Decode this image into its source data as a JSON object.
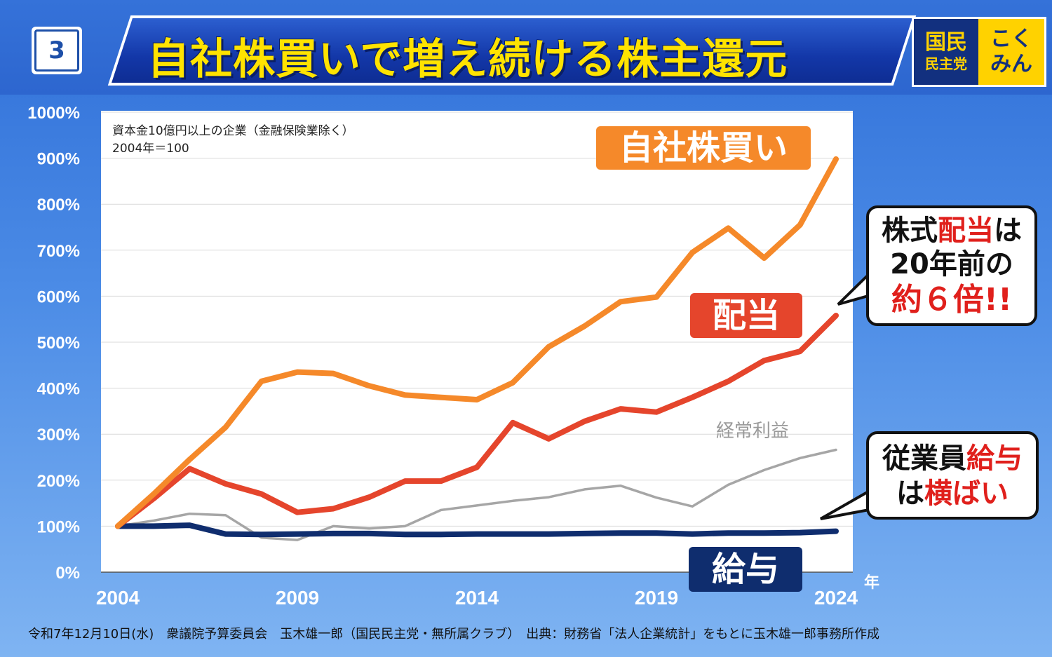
{
  "header": {
    "number": "3",
    "title": "自社株買いで増え続ける株主還元",
    "logo_line1": "国民",
    "logo_line2": "民主党",
    "logo_right1": "こく",
    "logo_right2": "みん"
  },
  "colors": {
    "buyback": "#f5892a",
    "dividend": "#e5452c",
    "ordinary_profit": "#a6a6a6",
    "salary": "#0f2d6e",
    "chip_orange": "#f5892a",
    "chip_red": "#e5452c",
    "chip_navy": "#0f2d6e"
  },
  "chart_data": {
    "type": "line",
    "note_line1": "資本金10億円以上の企業（金融保険業除く）",
    "note_line2": "2004年＝100",
    "x_unit": "年",
    "ylim": [
      0,
      1000
    ],
    "xlim": [
      2004,
      2024
    ],
    "y_ticks": [
      "0%",
      "100%",
      "200%",
      "300%",
      "400%",
      "500%",
      "600%",
      "700%",
      "800%",
      "900%",
      "1000%"
    ],
    "x_ticks": [
      "2004",
      "2009",
      "2014",
      "2019",
      "2024"
    ],
    "grid": true,
    "x": [
      2004,
      2005,
      2006,
      2007,
      2008,
      2009,
      2010,
      2011,
      2012,
      2013,
      2014,
      2015,
      2016,
      2017,
      2018,
      2019,
      2020,
      2021,
      2022,
      2023,
      2024
    ],
    "series": [
      {
        "key": "buyback",
        "name": "自社株買い",
        "values": [
          100,
          170,
          245,
          315,
          415,
          435,
          432,
          405,
          385,
          380,
          375,
          412,
          490,
          535,
          588,
          598,
          695,
          748,
          683,
          755,
          898
        ]
      },
      {
        "key": "dividend",
        "name": "配当",
        "values": [
          100,
          160,
          225,
          192,
          170,
          130,
          138,
          163,
          198,
          198,
          228,
          325,
          290,
          328,
          355,
          348,
          380,
          415,
          460,
          480,
          558
        ]
      },
      {
        "key": "ordinary_profit",
        "name": "経常利益",
        "values": [
          100,
          112,
          127,
          124,
          75,
          70,
          100,
          95,
          100,
          135,
          145,
          155,
          163,
          180,
          188,
          162,
          143,
          190,
          222,
          248,
          266
        ]
      },
      {
        "key": "salary",
        "name": "給与",
        "values": [
          100,
          100,
          102,
          83,
          82,
          83,
          84,
          84,
          82,
          82,
          83,
          83,
          83,
          84,
          85,
          85,
          83,
          85,
          85,
          86,
          89
        ]
      }
    ]
  },
  "callouts": {
    "dividend_part1": "株式",
    "dividend_part2": "配当",
    "dividend_part3": "は",
    "dividend_line2": "20年前の",
    "dividend_line3": "約６倍!!",
    "salary_part1": "従業員",
    "salary_part2": "給与",
    "salary_part3": "は",
    "salary_part4": "横ばい"
  },
  "footer": {
    "text": "令和7年12月10日(水)　衆議院予算委員会　玉木雄一郎（国民民主党・無所属クラブ）　出典：財務省「法人企業統計」をもとに玉木雄一郎事務所作成"
  }
}
